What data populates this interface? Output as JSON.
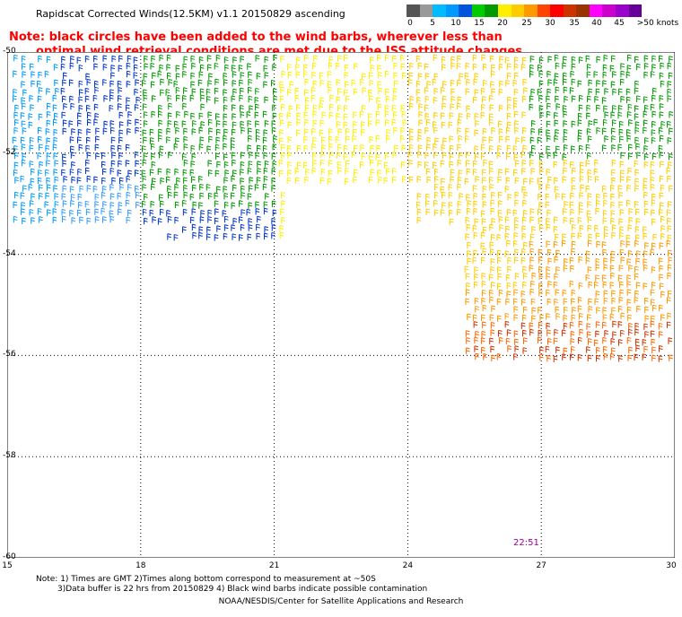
{
  "header": {
    "title": "Rapidscat Corrected Winds(12.5KM) v1.1 20150829 ascending"
  },
  "note": {
    "line1": "Note: black circles have been added to the wind barbs, wherever less than",
    "line2": "optimal wind retrieval conditions are met due to the ISS attitude changes."
  },
  "legend": {
    "ticks": [
      "0",
      "5",
      "10",
      "15",
      "20",
      "25",
      "30",
      "35",
      "40",
      "45",
      ">50 knots"
    ],
    "colors": [
      "#555555",
      "#999999",
      "#00bbff",
      "#0099ff",
      "#0055dd",
      "#00cc00",
      "#009900",
      "#ffee00",
      "#ffcc00",
      "#ff9900",
      "#ff4400",
      "#ff0000",
      "#cc3300",
      "#993300",
      "#ff00ff",
      "#cc00cc",
      "#9900cc",
      "#660099"
    ]
  },
  "map": {
    "lat_labels": [
      "-50",
      "-52",
      "-54",
      "-56",
      "-58",
      "-60"
    ],
    "lon_labels": [
      "15",
      "18",
      "21",
      "24",
      "27",
      "30"
    ],
    "lon_range": [
      15,
      30
    ],
    "lat_range": [
      -60,
      -50
    ],
    "timestamp": "22:51"
  },
  "footnotes": {
    "line1": "Note: 1) Times are GMT 2)Times along bottom correspond to measurement at ~50S",
    "line2": "3)Data buffer is 22 hrs from 20150829 4) Black wind barbs indicate possible contamination",
    "credit": "NOAA/NESDIS/Center for Satellite Applications and Research"
  }
}
